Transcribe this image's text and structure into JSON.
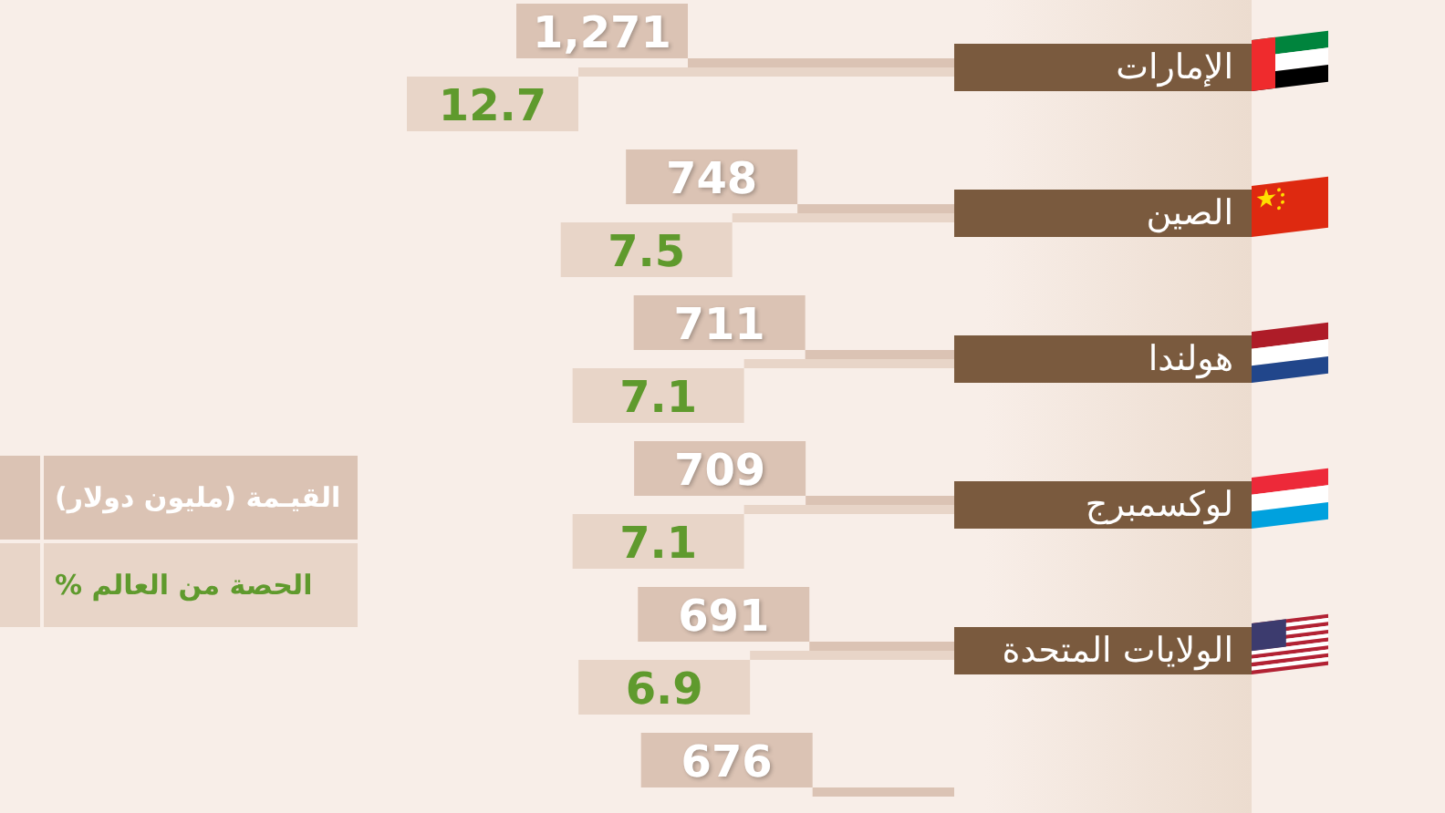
{
  "chart_data": [
    {
      "type": "bar",
      "orientation": "horizontal",
      "categories": [
        "الإمارات",
        "الصين",
        "هولندا",
        "لوكسمبرج",
        "الولايات المتحدة",
        null
      ],
      "series": [
        {
          "name": "القيـمة (مليون دولار)",
          "color": "#dbc3b4",
          "values": [
            1271,
            748,
            711,
            709,
            691,
            676
          ],
          "value_labels": [
            "1,271",
            "748",
            "711",
            "709",
            "691",
            "676"
          ]
        }
      ],
      "legend": "left"
    },
    {
      "type": "bar",
      "orientation": "horizontal",
      "categories": [
        null,
        null,
        null,
        null,
        null,
        null
      ],
      "series": [
        {
          "name": "الحصة من العالم %",
          "color": "#e8d5c8",
          "values": [
            12.7,
            7.5,
            7.1,
            7.1,
            6.9,
            null
          ],
          "value_labels": [
            "12.7",
            "7.5",
            "7.1",
            "7.1",
            "6.9",
            null
          ]
        }
      ],
      "legend": "left"
    }
  ]
}
